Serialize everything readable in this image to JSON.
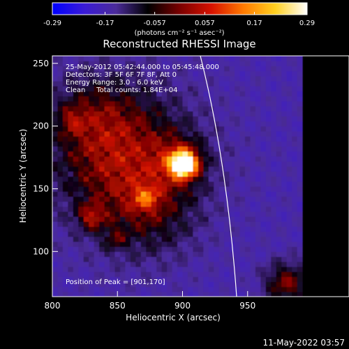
{
  "chart_data": {
    "type": "heatmap",
    "title": "Reconstructed RHESSI Image",
    "xlabel": "Heliocentric X (arcsec)",
    "ylabel": "Heliocentric Y (arcsec)",
    "xlim": [
      800,
      990
    ],
    "ylim": [
      64,
      256
    ],
    "x_ticks": [
      800,
      850,
      900,
      950
    ],
    "y_ticks": [
      100,
      150,
      200,
      250
    ],
    "colorbar": {
      "min": -0.29,
      "max": 0.29,
      "ticks": [
        "-0.29",
        "-0.17",
        "-0.057",
        "0.057",
        "0.17",
        "0.29"
      ],
      "unit": "(photons cm⁻² s⁻¹ asec⁻²)",
      "colors": [
        "#0000ff",
        "#3a1bd6",
        "#4b2b9a",
        "#000000",
        "#7a0000",
        "#d81200",
        "#ff7a00",
        "#ffd020",
        "#ffffff"
      ]
    },
    "annotations": [
      "25-May-2012 05:42:44.000 to 05:45:48.000",
      "Detectors: 3F 5F 6F 7F 8F, Att 0",
      "Energy Range: 3.0 - 6.0 keV",
      "Clean     Total counts: 1.84E+04"
    ],
    "peak_label": "Position of Peak = [901,170]",
    "peak": [
      901,
      170
    ],
    "timestamp": "11-May-2022 03:57"
  }
}
